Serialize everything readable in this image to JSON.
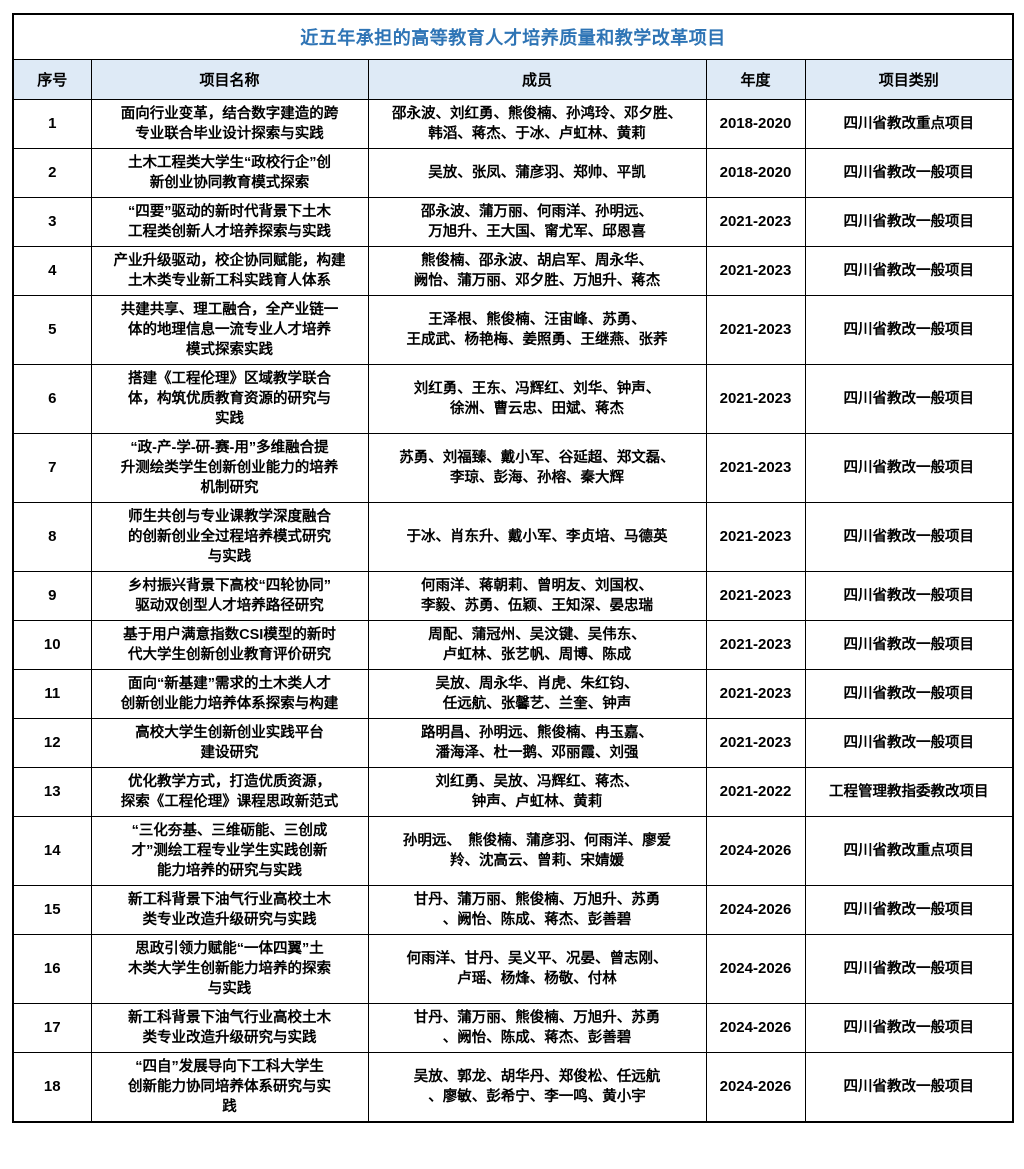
{
  "title": "近五年承担的高等教育人才培养质量和教学改革项目",
  "title_color": "#2E74B5",
  "header_bg_color": "#DEEAF6",
  "border_color": "#000000",
  "headers": [
    "序号",
    "项目名称",
    "成员",
    "年度",
    "项目类别"
  ],
  "rows": [
    {
      "no": "1",
      "name": "面向行业变革，结合数字建造的跨\n专业联合毕业设计探索与实践",
      "members": "邵永波、刘红勇、熊俊楠、孙鸿玲、邓夕胜、\n韩滔、蒋杰、于冰、卢虹林、黄莉",
      "years": "2018-2020",
      "category": "四川省教改重点项目"
    },
    {
      "no": "2",
      "name": "土木工程类大学生“政校行企”创\n新创业协同教育模式探索",
      "members": "吴放、张凤、蒲彦羽、郑帅、平凯",
      "years": "2018-2020",
      "category": "四川省教改一般项目"
    },
    {
      "no": "3",
      "name": "“四要”驱动的新时代背景下土木\n工程类创新人才培养探索与实践",
      "members": "邵永波、蒲万丽、何雨洋、孙明远、\n万旭升、王大国、甯尤军、邱恩喜",
      "years": "2021-2023",
      "category": "四川省教改一般项目"
    },
    {
      "no": "4",
      "name": "产业升级驱动，校企协同赋能，构建\n土木类专业新工科实践育人体系",
      "members": "熊俊楠、邵永波、胡启军、周永华、\n阙怡、蒲万丽、邓夕胜、万旭升、蒋杰",
      "years": "2021-2023",
      "category": "四川省教改一般项目"
    },
    {
      "no": "5",
      "name": "共建共享、理工融合，全产业链一\n体的地理信息一流专业人才培养\n模式探索实践",
      "members": "王泽根、熊俊楠、汪宙峰、苏勇、\n王成武、杨艳梅、姜照勇、王继燕、张荞",
      "years": "2021-2023",
      "category": "四川省教改一般项目"
    },
    {
      "no": "6",
      "name": "搭建《工程伦理》区域教学联合\n体，构筑优质教育资源的研究与\n实践",
      "members": "刘红勇、王东、冯辉红、刘华、钟声、\n徐洲、曹云忠、田斌、蒋杰",
      "years": "2021-2023",
      "category": "四川省教改一般项目"
    },
    {
      "no": "7",
      "name": "“政-产-学-研-赛-用”多维融合提\n升测绘类学生创新创业能力的培养\n机制研究",
      "members": "苏勇、刘福臻、戴小军、谷延超、郑文磊、\n李琼、彭海、孙榕、秦大辉",
      "years": "2021-2023",
      "category": "四川省教改一般项目"
    },
    {
      "no": "8",
      "name": "师生共创与专业课教学深度融合\n的创新创业全过程培养模式研究\n与实践",
      "members": "于冰、肖东升、戴小军、李贞培、马德英",
      "years": "2021-2023",
      "category": "四川省教改一般项目"
    },
    {
      "no": "9",
      "name": "乡村振兴背景下高校“四轮协同”\n驱动双创型人才培养路径研究",
      "members": "何雨洋、蒋朝莉、曾明友、刘国权、\n李毅、苏勇、伍颖、王知深、晏忠瑞",
      "years": "2021-2023",
      "category": "四川省教改一般项目"
    },
    {
      "no": "10",
      "name": "基于用户满意指数CSI模型的新时\n代大学生创新创业教育评价研究",
      "members": "周配、蒲冠州、吴汶键、吴伟东、\n卢虹林、张艺帆、周博、陈成",
      "years": "2021-2023",
      "category": "四川省教改一般项目"
    },
    {
      "no": "11",
      "name": "面向“新基建”需求的土木类人才\n创新创业能力培养体系探索与构建",
      "members": "吴放、周永华、肖虎、朱红钧、\n任远航、张馨艺、兰奎、钟声",
      "years": "2021-2023",
      "category": "四川省教改一般项目"
    },
    {
      "no": "12",
      "name": "高校大学生创新创业实践平台\n建设研究",
      "members": "路明昌、孙明远、熊俊楠、冉玉嘉、\n潘海泽、杜一鹅、邓丽霞、刘强",
      "years": "2021-2023",
      "category": "四川省教改一般项目"
    },
    {
      "no": "13",
      "name": "优化教学方式，打造优质资源，\n探索《工程伦理》课程思政新范式",
      "members": "刘红勇、吴放、冯辉红、蒋杰、\n钟声、卢虹林、黄莉",
      "years": "2021-2022",
      "category": "工程管理教指委教改项目"
    },
    {
      "no": "14",
      "name": "“三化夯基、三维砺能、三创成\n才”测绘工程专业学生实践创新\n能力培养的研究与实践",
      "members": "孙明远、　熊俊楠、蒲彦羽、何雨洋、廖爱\n羚、沈高云、曾莉、宋婧媛",
      "years": "2024-2026",
      "category": "四川省教改重点项目"
    },
    {
      "no": "15",
      "name": "新工科背景下油气行业高校土木\n类专业改造升级研究与实践",
      "members": "甘丹、蒲万丽、熊俊楠、万旭升、苏勇\n、阙怡、陈成、蒋杰、彭善碧",
      "years": "2024-2026",
      "category": "四川省教改一般项目"
    },
    {
      "no": "16",
      "name": "思政引领力赋能“一体四翼”土\n木类大学生创新能力培养的探索\n与实践",
      "members": "何雨洋、甘丹、吴义平、况晏、曾志刚、\n卢瑶、杨烽、杨敬、付林",
      "years": "2024-2026",
      "category": "四川省教改一般项目"
    },
    {
      "no": "17",
      "name": "新工科背景下油气行业高校土木\n类专业改造升级研究与实践",
      "members": "甘丹、蒲万丽、熊俊楠、万旭升、苏勇\n、阙怡、陈成、蒋杰、彭善碧",
      "years": "2024-2026",
      "category": "四川省教改一般项目"
    },
    {
      "no": "18",
      "name": "“四自”发展导向下工科大学生\n创新能力协同培养体系研究与实\n践",
      "members": "吴放、郭龙、胡华丹、郑俊松、任远航\n、廖敏、彭希宁、李一鸣、黄小宇",
      "years": "2024-2026",
      "category": "四川省教改一般项目"
    }
  ]
}
